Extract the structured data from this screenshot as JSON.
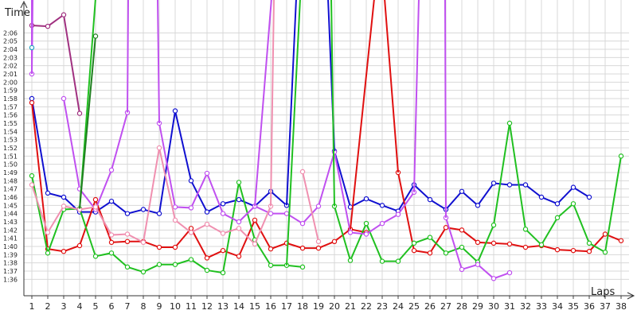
{
  "chart_data": {
    "type": "line",
    "xlabel": "Laps",
    "ylabel": "Time",
    "x": [
      1,
      2,
      3,
      4,
      5,
      6,
      7,
      8,
      9,
      10,
      11,
      12,
      13,
      14,
      15,
      16,
      17,
      18,
      19,
      20,
      21,
      22,
      23,
      24,
      25,
      26,
      27,
      28,
      29,
      30,
      31,
      32,
      33,
      34,
      35,
      36,
      37,
      38
    ],
    "xlim": [
      0.5,
      38.5
    ],
    "ylim": [
      94,
      130
    ],
    "y_ticks": [
      96,
      97,
      98,
      99,
      100,
      101,
      102,
      103,
      104,
      105,
      106,
      107,
      108,
      109,
      110,
      111,
      112,
      113,
      114,
      115,
      116,
      117,
      118,
      119,
      120,
      121,
      122,
      123,
      124,
      125,
      126
    ],
    "y_tick_labels": [
      "1:36",
      "1:37",
      "1:38",
      "1:39",
      "1:40",
      "1:41",
      "1:42",
      "1:43",
      "1:44",
      "1:45",
      "1:46",
      "1:47",
      "1:48",
      "1:49",
      "1:50",
      "1:51",
      "1:52",
      "1:53",
      "1:54",
      "1:55",
      "1:56",
      "1:57",
      "1:58",
      "1:59",
      "2:00",
      "2:01",
      "2:02",
      "2:03",
      "2:04",
      "2:05",
      "2:06"
    ],
    "grid": true,
    "legend": "none",
    "series": [
      {
        "color": "#1010d0",
        "values": [
          118,
          106.5,
          106,
          104.2,
          104.2,
          105.5,
          104,
          104.5,
          104,
          116.5,
          108,
          104.2,
          105.2,
          105.7,
          104.9,
          106.7,
          105,
          null,
          null,
          111.6,
          104.8,
          105.8,
          105,
          104.3,
          107.5,
          105.7,
          104.5,
          106.7,
          105,
          107.7,
          107.5,
          107.5,
          106,
          105.2,
          107.2,
          106,
          null,
          null
        ]
      },
      {
        "color": "#e01010",
        "values": [
          117.5,
          99.7,
          99.4,
          100.1,
          105.7,
          100.5,
          100.6,
          100.6,
          99.9,
          99.9,
          102.2,
          98.6,
          99.5,
          98.8,
          103.2,
          99.7,
          100.4,
          99.8,
          99.8,
          100.6,
          102.1,
          101.7,
          null,
          109,
          99.5,
          99.2,
          102.3,
          102,
          100.5,
          100.4,
          100.3,
          99.9,
          100.1,
          99.6,
          99.5,
          99.4,
          101.5,
          100.7
        ]
      },
      {
        "color": "#20c020",
        "values": [
          108.6,
          99.2,
          104.5,
          104.6,
          98.8,
          99.2,
          97.5,
          96.9,
          97.8,
          97.8,
          98.4,
          97.1,
          96.8,
          107.8,
          100.8,
          97.7,
          97.7,
          97.5,
          null,
          104.9,
          98.3,
          102.8,
          98.2,
          98.2,
          100.4,
          101.1,
          99.2,
          99.9,
          98.1,
          102.6,
          115,
          102.1,
          100.2,
          103.5,
          105.2,
          100.4,
          99.3,
          111
        ]
      },
      {
        "color": "#c050f0",
        "values": [
          121,
          null,
          118,
          107,
          104.5,
          109.3,
          116.3,
          null,
          115,
          104.8,
          104.7,
          108.9,
          104,
          103,
          104.9,
          104,
          104,
          102.8,
          104.9,
          111.5,
          101.7,
          101.5,
          102.8,
          103.9,
          106.6,
          null,
          103.5,
          97.2,
          97.8,
          96.1,
          96.8,
          null,
          null,
          null,
          null,
          null,
          null,
          null
        ]
      },
      {
        "color": "#f090b0",
        "values": [
          107.5,
          101.7,
          104.9,
          104.5,
          104.8,
          101.4,
          101.5,
          100.5,
          112,
          103.2,
          101.7,
          102.7,
          101.6,
          102.2,
          100.3,
          104.9,
          null,
          109.1,
          100.6,
          null,
          null,
          null,
          null,
          null,
          null,
          null,
          null,
          null,
          null,
          null,
          null,
          null,
          null,
          null,
          null,
          null,
          null,
          null
        ]
      },
      {
        "color": "#a03080",
        "values": [
          126.9,
          126.8,
          128.2,
          116.2,
          null,
          null,
          null,
          null,
          null,
          null,
          null,
          null,
          null,
          null,
          null,
          null,
          null,
          null,
          null,
          null,
          null,
          null,
          null,
          null,
          null,
          null,
          null,
          null,
          null,
          null,
          null,
          null,
          null,
          null,
          null,
          null,
          null,
          null
        ]
      }
    ],
    "spikes": [
      {
        "series": 3,
        "from": 1,
        "to": 1
      },
      {
        "series": 3,
        "from": 1,
        "to": 1.05
      },
      {
        "series": 3,
        "from": 7,
        "to": 7.05
      },
      {
        "series": 3,
        "from": 9,
        "to": 8.9
      },
      {
        "series": 3,
        "from": 15,
        "to": 16.05
      },
      {
        "series": 3,
        "from": 25,
        "to": 25.3
      },
      {
        "series": 3,
        "from": 27,
        "to": 26.95
      },
      {
        "series": 0,
        "from": 17,
        "to": 17.6
      },
      {
        "series": 0,
        "from": 20,
        "to": 19.6
      },
      {
        "series": 2,
        "from": 17,
        "to": 17.85
      },
      {
        "series": 2,
        "from": 20,
        "to": 19.8
      },
      {
        "series": 1,
        "from": 21,
        "to": 22.5
      },
      {
        "series": 1,
        "from": 24,
        "to": 23.15
      },
      {
        "series": 4,
        "from": 16,
        "to": 16.2
      },
      {
        "series": 2,
        "from": 4,
        "to": 5
      }
    ]
  }
}
